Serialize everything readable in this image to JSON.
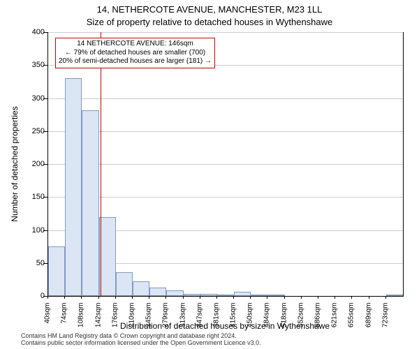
{
  "title_main": "14, NETHERCOTE AVENUE, MANCHESTER, M23 1LL",
  "title_sub": "Size of property relative to detached houses in Wythenshawe",
  "y_axis_label": "Number of detached properties",
  "x_axis_label": "Distribution of detached houses by size in Wythenshawe",
  "chart": {
    "type": "histogram",
    "ylim": [
      0,
      400
    ],
    "ytick_step": 50,
    "grid_color": "#cccccc",
    "background_color": "#ffffff",
    "bar_fill": "#dbe5f4",
    "bar_border": "#7f9bc4",
    "bar_width": 1.0,
    "categories": [
      "40sqm",
      "74sqm",
      "108sqm",
      "142sqm",
      "176sqm",
      "210sqm",
      "245sqm",
      "279sqm",
      "313sqm",
      "347sqm",
      "381sqm",
      "415sqm",
      "450sqm",
      "484sqm",
      "518sqm",
      "552sqm",
      "586sqm",
      "621sqm",
      "655sqm",
      "689sqm",
      "723sqm"
    ],
    "values": [
      75,
      330,
      282,
      120,
      36,
      22,
      13,
      9,
      3,
      3,
      2,
      6,
      2,
      1,
      0,
      0,
      0,
      0,
      0,
      0,
      2
    ]
  },
  "reference_line": {
    "position_index": 3.1,
    "color": "#c00000"
  },
  "annotation": {
    "lines": [
      "14 NETHERCOTE AVENUE: 146sqm",
      "← 79% of detached houses are smaller (700)",
      "20% of semi-detached houses are larger (181) →"
    ],
    "border_color": "#c00000"
  },
  "footnote_line1": "Contains HM Land Registry data © Crown copyright and database right 2024.",
  "footnote_line2": "Contains public sector information licensed under the Open Government Licence v3.0."
}
